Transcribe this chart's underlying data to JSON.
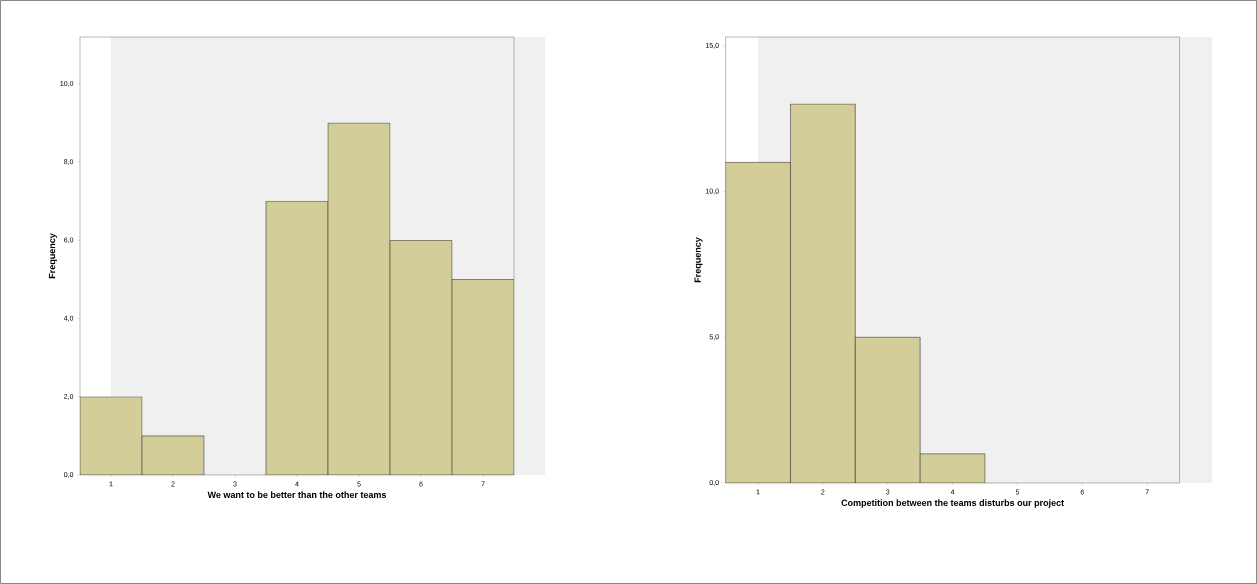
{
  "chart_data": [
    {
      "type": "bar",
      "xlabel": "We want to be better than the other teams",
      "ylabel": "Frequency",
      "categories": [
        "1",
        "2",
        "3",
        "4",
        "5",
        "6",
        "7"
      ],
      "values": [
        2,
        1,
        0,
        7,
        9,
        6,
        5
      ],
      "color": "#d3ce99",
      "ylim": [
        0,
        11.2
      ],
      "yticks": [
        {
          "value": 0,
          "label": "0,0"
        },
        {
          "value": 2,
          "label": "2,0"
        },
        {
          "value": 4,
          "label": "4,0"
        },
        {
          "value": 6,
          "label": "6,0"
        },
        {
          "value": 8,
          "label": "8,0"
        },
        {
          "value": 10,
          "label": "10,0"
        }
      ]
    },
    {
      "type": "bar",
      "xlabel": "Competition between the teams disturbs our project",
      "ylabel": "Frequency",
      "categories": [
        "1",
        "2",
        "3",
        "4",
        "5",
        "6",
        "7"
      ],
      "values": [
        11,
        13,
        5,
        1,
        0,
        0,
        0
      ],
      "color": "#d3ce99",
      "ylim": [
        0,
        15.3
      ],
      "yticks": [
        {
          "value": 0,
          "label": "0,0"
        },
        {
          "value": 5,
          "label": "5,0"
        },
        {
          "value": 10,
          "label": "10,0"
        },
        {
          "value": 15,
          "label": "15,0"
        }
      ]
    }
  ]
}
